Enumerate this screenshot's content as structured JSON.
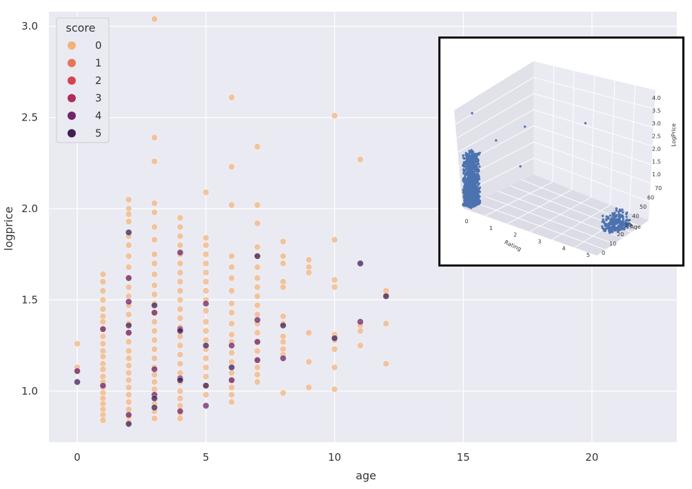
{
  "chart_data": [
    {
      "type": "scatter",
      "title": "",
      "xlabel": "age",
      "ylabel": "logprice",
      "xlim": [
        -1.1,
        23.3
      ],
      "ylim": [
        0.72,
        3.08
      ],
      "xticks": [
        0,
        5,
        10,
        15,
        20
      ],
      "yticks": [
        1.0,
        1.5,
        2.0,
        2.5,
        3.0
      ],
      "xtick_labels": [
        "0",
        "5",
        "10",
        "15",
        "20"
      ],
      "ytick_labels": [
        "1.0",
        "1.5",
        "2.0",
        "2.5",
        "3.0"
      ],
      "grid": true,
      "legend": {
        "title": "score",
        "placement": "top-left",
        "entries": [
          {
            "label": "0",
            "color": "#f2b27a"
          },
          {
            "label": "1",
            "color": "#e57653"
          },
          {
            "label": "2",
            "color": "#d74354"
          },
          {
            "label": "3",
            "color": "#ad2e5c"
          },
          {
            "label": "4",
            "color": "#722468"
          },
          {
            "label": "5",
            "color": "#3f1f55"
          }
        ]
      },
      "series": [
        {
          "name": "0",
          "color": "#f2b27a",
          "points": [
            [
              0,
              1.26
            ],
            [
              0,
              1.13
            ],
            [
              0,
              1.11
            ],
            [
              1,
              1.64
            ],
            [
              1,
              1.6
            ],
            [
              1,
              1.55
            ],
            [
              1,
              1.5
            ],
            [
              1,
              1.45
            ],
            [
              1,
              1.41
            ],
            [
              1,
              1.38
            ],
            [
              1,
              1.34
            ],
            [
              1,
              1.3
            ],
            [
              1,
              1.26
            ],
            [
              1,
              1.22
            ],
            [
              1,
              1.19
            ],
            [
              1,
              1.15
            ],
            [
              1,
              1.12
            ],
            [
              1,
              1.08
            ],
            [
              1,
              1.05
            ],
            [
              1,
              1.02
            ],
            [
              1,
              0.99
            ],
            [
              1,
              0.96
            ],
            [
              1,
              0.93
            ],
            [
              1,
              0.9
            ],
            [
              1,
              0.87
            ],
            [
              1,
              0.84
            ],
            [
              2,
              2.05
            ],
            [
              2,
              2.0
            ],
            [
              2,
              1.97
            ],
            [
              2,
              1.93
            ],
            [
              2,
              1.85
            ],
            [
              2,
              1.8
            ],
            [
              2,
              1.74
            ],
            [
              2,
              1.68
            ],
            [
              2,
              1.62
            ],
            [
              2,
              1.57
            ],
            [
              2,
              1.52
            ],
            [
              2,
              1.47
            ],
            [
              2,
              1.42
            ],
            [
              2,
              1.37
            ],
            [
              2,
              1.32
            ],
            [
              2,
              1.27
            ],
            [
              2,
              1.22
            ],
            [
              2,
              1.18
            ],
            [
              2,
              1.14
            ],
            [
              2,
              1.1
            ],
            [
              2,
              1.06
            ],
            [
              2,
              1.02
            ],
            [
              2,
              0.98
            ],
            [
              2,
              0.94
            ],
            [
              2,
              0.9
            ],
            [
              2,
              0.86
            ],
            [
              2,
              0.83
            ],
            [
              3,
              3.04
            ],
            [
              3,
              2.39
            ],
            [
              3,
              2.26
            ],
            [
              3,
              2.03
            ],
            [
              3,
              1.98
            ],
            [
              3,
              1.9
            ],
            [
              3,
              1.83
            ],
            [
              3,
              1.75
            ],
            [
              3,
              1.7
            ],
            [
              3,
              1.64
            ],
            [
              3,
              1.58
            ],
            [
              3,
              1.53
            ],
            [
              3,
              1.48
            ],
            [
              3,
              1.43
            ],
            [
              3,
              1.38
            ],
            [
              3,
              1.33
            ],
            [
              3,
              1.28
            ],
            [
              3,
              1.23
            ],
            [
              3,
              1.18
            ],
            [
              3,
              1.13
            ],
            [
              3,
              1.09
            ],
            [
              3,
              1.05
            ],
            [
              3,
              1.01
            ],
            [
              3,
              0.97
            ],
            [
              3,
              0.93
            ],
            [
              3,
              0.89
            ],
            [
              3,
              0.85
            ],
            [
              4,
              1.95
            ],
            [
              4,
              1.9
            ],
            [
              4,
              1.85
            ],
            [
              4,
              1.8
            ],
            [
              4,
              1.75
            ],
            [
              4,
              1.7
            ],
            [
              4,
              1.65
            ],
            [
              4,
              1.6
            ],
            [
              4,
              1.55
            ],
            [
              4,
              1.5
            ],
            [
              4,
              1.45
            ],
            [
              4,
              1.4
            ],
            [
              4,
              1.35
            ],
            [
              4,
              1.3
            ],
            [
              4,
              1.25
            ],
            [
              4,
              1.2
            ],
            [
              4,
              1.15
            ],
            [
              4,
              1.1
            ],
            [
              4,
              1.05
            ],
            [
              4,
              1.0
            ],
            [
              4,
              0.96
            ],
            [
              4,
              0.92
            ],
            [
              4,
              0.88
            ],
            [
              4,
              0.85
            ],
            [
              5,
              2.09
            ],
            [
              5,
              1.84
            ],
            [
              5,
              1.8
            ],
            [
              5,
              1.75
            ],
            [
              5,
              1.7
            ],
            [
              5,
              1.65
            ],
            [
              5,
              1.6
            ],
            [
              5,
              1.55
            ],
            [
              5,
              1.5
            ],
            [
              5,
              1.44
            ],
            [
              5,
              1.38
            ],
            [
              5,
              1.33
            ],
            [
              5,
              1.28
            ],
            [
              5,
              1.23
            ],
            [
              5,
              1.18
            ],
            [
              5,
              1.13
            ],
            [
              5,
              1.08
            ],
            [
              5,
              1.03
            ],
            [
              5,
              0.98
            ],
            [
              6,
              2.61
            ],
            [
              6,
              2.23
            ],
            [
              6,
              2.02
            ],
            [
              6,
              1.74
            ],
            [
              6,
              1.68
            ],
            [
              6,
              1.62
            ],
            [
              6,
              1.55
            ],
            [
              6,
              1.48
            ],
            [
              6,
              1.43
            ],
            [
              6,
              1.37
            ],
            [
              6,
              1.31
            ],
            [
              6,
              1.27
            ],
            [
              6,
              1.21
            ],
            [
              6,
              1.16
            ],
            [
              6,
              1.1
            ],
            [
              6,
              1.06
            ],
            [
              6,
              1.02
            ],
            [
              6,
              0.98
            ],
            [
              6,
              0.94
            ],
            [
              7,
              2.34
            ],
            [
              7,
              2.02
            ],
            [
              7,
              1.92
            ],
            [
              7,
              1.79
            ],
            [
              7,
              1.74
            ],
            [
              7,
              1.68
            ],
            [
              7,
              1.62
            ],
            [
              7,
              1.57
            ],
            [
              7,
              1.52
            ],
            [
              7,
              1.47
            ],
            [
              7,
              1.42
            ],
            [
              7,
              1.37
            ],
            [
              7,
              1.32
            ],
            [
              7,
              1.27
            ],
            [
              7,
              1.22
            ],
            [
              7,
              1.17
            ],
            [
              7,
              1.13
            ],
            [
              7,
              1.09
            ],
            [
              7,
              1.05
            ],
            [
              8,
              1.82
            ],
            [
              8,
              1.74
            ],
            [
              8,
              1.7
            ],
            [
              8,
              1.6
            ],
            [
              8,
              1.57
            ],
            [
              8,
              1.41
            ],
            [
              8,
              1.37
            ],
            [
              8,
              1.3
            ],
            [
              8,
              1.27
            ],
            [
              8,
              1.23
            ],
            [
              8,
              1.2
            ],
            [
              8,
              0.99
            ],
            [
              9,
              1.72
            ],
            [
              9,
              1.68
            ],
            [
              9,
              1.65
            ],
            [
              9,
              1.32
            ],
            [
              9,
              1.16
            ],
            [
              9,
              1.02
            ],
            [
              10,
              2.51
            ],
            [
              10,
              1.83
            ],
            [
              10,
              1.61
            ],
            [
              10,
              1.57
            ],
            [
              10,
              1.31
            ],
            [
              10,
              1.28
            ],
            [
              10,
              1.23
            ],
            [
              10,
              1.13
            ],
            [
              10,
              1.01
            ],
            [
              11,
              2.27
            ],
            [
              11,
              1.36
            ],
            [
              11,
              1.33
            ],
            [
              11,
              1.25
            ],
            [
              12,
              1.55
            ],
            [
              12,
              1.53
            ],
            [
              12,
              1.37
            ],
            [
              12,
              1.15
            ]
          ]
        },
        {
          "name": "4",
          "color": "#722468",
          "points": [
            [
              0,
              1.11
            ],
            [
              1,
              1.34
            ],
            [
              1,
              1.03
            ],
            [
              2,
              1.62
            ],
            [
              2,
              1.49
            ],
            [
              2,
              1.32
            ],
            [
              2,
              0.87
            ],
            [
              3,
              1.43
            ],
            [
              3,
              1.12
            ],
            [
              3,
              0.98
            ],
            [
              4,
              1.76
            ],
            [
              4,
              1.34
            ],
            [
              4,
              1.07
            ],
            [
              4,
              0.89
            ],
            [
              5,
              1.48
            ],
            [
              5,
              0.92
            ],
            [
              6,
              1.25
            ],
            [
              6,
              1.06
            ],
            [
              7,
              1.39
            ],
            [
              7,
              1.27
            ],
            [
              7,
              1.17
            ],
            [
              8,
              1.18
            ],
            [
              11,
              1.38
            ]
          ]
        },
        {
          "name": "5",
          "color": "#3f1f55",
          "points": [
            [
              0,
              1.05
            ],
            [
              2,
              1.87
            ],
            [
              2,
              1.36
            ],
            [
              2,
              0.82
            ],
            [
              3,
              1.47
            ],
            [
              3,
              0.96
            ],
            [
              3,
              0.91
            ],
            [
              4,
              1.06
            ],
            [
              4,
              1.33
            ],
            [
              5,
              1.25
            ],
            [
              5,
              1.03
            ],
            [
              6,
              1.13
            ],
            [
              7,
              1.74
            ],
            [
              8,
              1.36
            ],
            [
              10,
              1.29
            ],
            [
              11,
              1.7
            ],
            [
              12,
              1.52
            ]
          ]
        }
      ]
    },
    {
      "type": "scatter",
      "title": "",
      "xlabel": "Rating",
      "ylabel": "Age",
      "zlabel": "LogPrice",
      "xticks": [
        "0",
        "1",
        "2",
        "3",
        "4",
        "5"
      ],
      "yticks": [
        "0",
        "10",
        "20",
        "30",
        "40",
        "50",
        "60",
        "70"
      ],
      "zticks": [
        "1.0",
        "1.5",
        "2.0",
        "2.5",
        "3.0",
        "3.5",
        "4.0"
      ],
      "xlim": [
        0,
        5.5
      ],
      "ylim": [
        0,
        75
      ],
      "zlim": [
        0.8,
        4.2
      ],
      "grid": true,
      "color": "#4c72b0",
      "clusters": [
        {
          "rating": [
            0,
            0.35
          ],
          "age": [
            0,
            10
          ],
          "logprice": [
            0.9,
            2.6
          ],
          "count": 1200
        },
        {
          "rating": [
            4.5,
            5.0
          ],
          "age": [
            30,
            50
          ],
          "logprice": [
            0.9,
            1.4
          ],
          "count": 250
        }
      ],
      "outliers": [
        [
          0.2,
          5,
          3.9
        ],
        [
          0.6,
          20,
          2.9
        ],
        [
          1.2,
          35,
          3.3
        ],
        [
          2.9,
          55,
          3.6
        ],
        [
          1.4,
          25,
          2.2
        ]
      ]
    }
  ]
}
